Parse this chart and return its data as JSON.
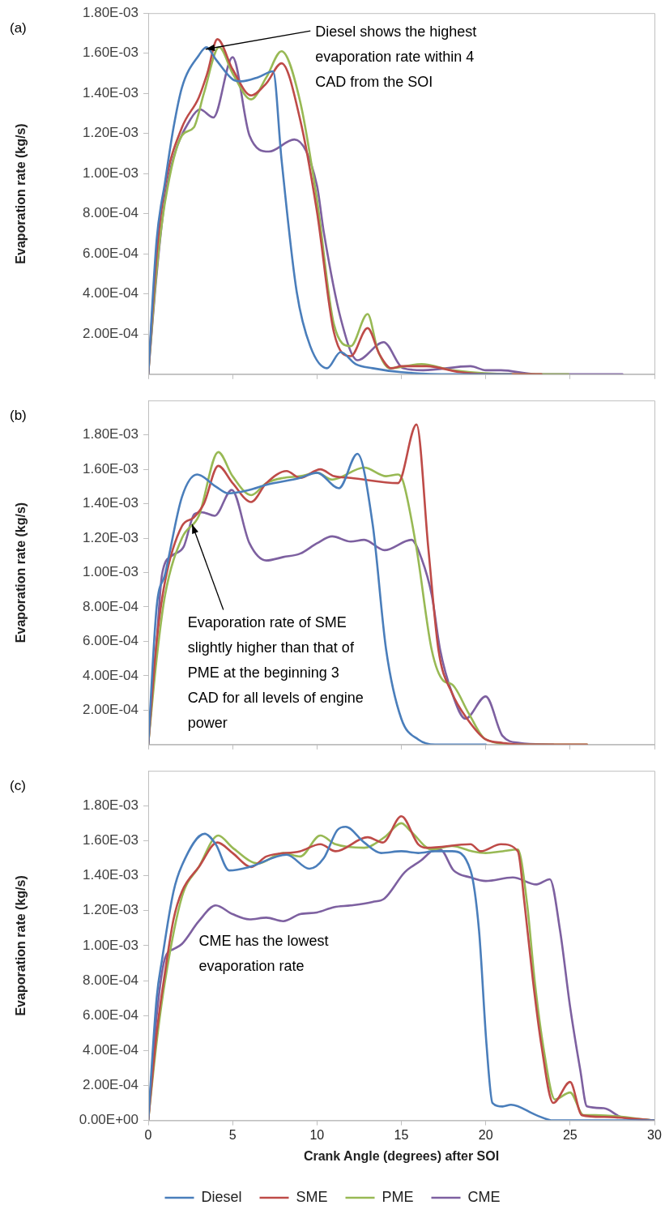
{
  "chart_data": [
    {
      "type": "line",
      "title": "(a)",
      "ylabel": "Evaporation rate (kg/s)",
      "xlim": [
        0,
        30
      ],
      "ylim": [
        0,
        0.0018
      ],
      "tick_labels": "y",
      "legend": false,
      "xticks": [
        {
          "value": 0,
          "label": null
        },
        {
          "value": 5,
          "label": null
        },
        {
          "value": 10,
          "label": null
        },
        {
          "value": 15,
          "label": null
        },
        {
          "value": 20,
          "label": null
        },
        {
          "value": 25,
          "label": null
        },
        {
          "value": 30,
          "label": null
        }
      ],
      "yticks": [
        {
          "value": 0.0002,
          "label": "2.00E-04"
        },
        {
          "value": 0.0004,
          "label": "4.00E-04"
        },
        {
          "value": 0.0006,
          "label": "6.00E-04"
        },
        {
          "value": 0.0008,
          "label": "8.00E-04"
        },
        {
          "value": 0.001,
          "label": "1.00E-03"
        },
        {
          "value": 0.0012,
          "label": "1.20E-03"
        },
        {
          "value": 0.0014,
          "label": "1.40E-03"
        },
        {
          "value": 0.0016,
          "label": "1.60E-03"
        },
        {
          "value": 0.0018,
          "label": "1.80E-03"
        }
      ],
      "annotations": [
        {
          "text": "Diesel shows the highest evaporation rate within 4 CAD from the SOI",
          "x": 3.4,
          "y": 0.00162
        }
      ],
      "series": [
        {
          "color": "#4a7ebb",
          "x": [
            0,
            0.5,
            1,
            1.5,
            2,
            3,
            3.45,
            4,
            5,
            5.5,
            6.5,
            7.4,
            7.9,
            8.8,
            9.6,
            10.6,
            11.4,
            12.3,
            13.3,
            15,
            18,
            21.5
          ],
          "values": [
            0,
            0.00067,
            0.00096,
            0.00123,
            0.00143,
            0.00159,
            0.00163,
            0.00157,
            0.00147,
            0.00146,
            0.00148,
            0.00151,
            0.00107,
            0.00041,
            0.00014,
            3e-05,
            0.00011,
            5e-05,
            3e-05,
            1e-05,
            0,
            0
          ]
        },
        {
          "color": "#be4b48",
          "x": [
            0,
            0.5,
            1,
            2,
            3,
            3.5,
            4.1,
            5,
            6.1,
            7,
            7.9,
            9,
            10,
            11,
            12,
            13,
            13.7,
            14.4,
            15,
            16.5,
            18.5,
            20,
            23.3
          ],
          "values": [
            0,
            0.0006,
            0.00094,
            0.00123,
            0.00138,
            0.0015,
            0.00167,
            0.00152,
            0.00139,
            0.00145,
            0.00155,
            0.00127,
            0.00081,
            0.00021,
            9e-05,
            0.00023,
            0.0001,
            3e-05,
            4e-05,
            4e-05,
            1e-05,
            0,
            0
          ]
        },
        {
          "color": "#98b954",
          "x": [
            0,
            0.5,
            1,
            2,
            2.7,
            3.3,
            4.2,
            5,
            6.1,
            7,
            7.9,
            9,
            10,
            11,
            12,
            13,
            13.6,
            14.3,
            16.2,
            18,
            22,
            24.9
          ],
          "values": [
            0,
            0.00052,
            0.00086,
            0.00119,
            0.00123,
            0.0014,
            0.00163,
            0.0015,
            0.00137,
            0.00148,
            0.00161,
            0.00136,
            0.00087,
            0.00025,
            0.00014,
            0.0003,
            0.00012,
            3e-05,
            5e-05,
            2e-05,
            0,
            0
          ]
        },
        {
          "color": "#7d60a0",
          "x": [
            0,
            0.5,
            1,
            1.5,
            2.5,
            3.07,
            3.86,
            5,
            6,
            7.15,
            8.66,
            10,
            10.4,
            11.4,
            12.4,
            13.95,
            15.1,
            16.3,
            19.1,
            20,
            20.9,
            23,
            28.1
          ],
          "values": [
            0,
            0.0005,
            0.00088,
            0.00108,
            0.00127,
            0.00132,
            0.00128,
            0.00158,
            0.00119,
            0.00111,
            0.00117,
            0.00094,
            0.00071,
            0.00028,
            7e-05,
            0.00016,
            3e-05,
            2e-05,
            4e-05,
            2e-05,
            2e-05,
            0,
            0
          ]
        }
      ]
    },
    {
      "type": "line",
      "title": "(b)",
      "ylabel": "Evaporation rate (kg/s)",
      "xlim": [
        0,
        30
      ],
      "ylim": [
        0,
        0.002
      ],
      "tick_labels": "y",
      "legend": false,
      "xticks": [
        {
          "value": 0,
          "label": null
        },
        {
          "value": 5,
          "label": null
        },
        {
          "value": 10,
          "label": null
        },
        {
          "value": 15,
          "label": null
        },
        {
          "value": 20,
          "label": null
        },
        {
          "value": 25,
          "label": null
        },
        {
          "value": 30,
          "label": null
        }
      ],
      "yticks": [
        {
          "value": 0.0002,
          "label": "2.00E-04"
        },
        {
          "value": 0.0004,
          "label": "4.00E-04"
        },
        {
          "value": 0.0006,
          "label": "6.00E-04"
        },
        {
          "value": 0.0008,
          "label": "8.00E-04"
        },
        {
          "value": 0.001,
          "label": "1.00E-03"
        },
        {
          "value": 0.0012,
          "label": "1.20E-03"
        },
        {
          "value": 0.0014,
          "label": "1.40E-03"
        },
        {
          "value": 0.0016,
          "label": "1.60E-03"
        },
        {
          "value": 0.0018,
          "label": "1.80E-03"
        }
      ],
      "annotations": [
        {
          "text": "Evaporation rate of SME slightly higher than that of PME at the beginning 3 CAD for all levels of engine power",
          "x": 2.6,
          "y": 0.00128
        }
      ],
      "series": [
        {
          "color": "#4a7ebb",
          "x": [
            0,
            0.5,
            1,
            2,
            2.9,
            4,
            4.75,
            6,
            7,
            9,
            10,
            11.3,
            12.4,
            13.3,
            14.1,
            15,
            16,
            17,
            20
          ],
          "values": [
            0,
            0.0008,
            0.00099,
            0.00144,
            0.00157,
            0.0015,
            0.00146,
            0.00148,
            0.00151,
            0.00155,
            0.00158,
            0.00149,
            0.00169,
            0.00128,
            0.00055,
            0.00015,
            3e-05,
            0,
            0
          ]
        },
        {
          "color": "#be4b48",
          "x": [
            0,
            0.5,
            1,
            2,
            2.7,
            3.3,
            4.15,
            5,
            6.1,
            7,
            8.2,
            9,
            10.2,
            11,
            12,
            14.8,
            15.9,
            16.6,
            17.2,
            18,
            18.9,
            20,
            21,
            22,
            26
          ],
          "values": [
            0,
            0.0006,
            0.00095,
            0.00127,
            0.00132,
            0.0014,
            0.00162,
            0.00152,
            0.00141,
            0.00152,
            0.00159,
            0.00155,
            0.0016,
            0.00156,
            0.00155,
            0.00152,
            0.00186,
            0.00114,
            0.00055,
            0.0003,
            0.00015,
            3e-05,
            1e-05,
            0,
            0
          ]
        },
        {
          "color": "#98b954",
          "x": [
            0,
            0.5,
            1,
            2,
            3,
            4.15,
            5,
            6.1,
            7,
            8,
            9,
            10,
            10.9,
            12.8,
            14.1,
            14.8,
            15.1,
            15.9,
            16.8,
            17.5,
            18,
            19,
            20,
            22,
            26
          ],
          "values": [
            0,
            0.0005,
            0.00087,
            0.0012,
            0.00133,
            0.0017,
            0.00156,
            0.00145,
            0.00152,
            0.00155,
            0.00156,
            0.00158,
            0.00154,
            0.00161,
            0.00156,
            0.00157,
            0.00153,
            0.00114,
            0.00055,
            0.00037,
            0.00035,
            0.00018,
            3e-05,
            0,
            0
          ]
        },
        {
          "color": "#7d60a0",
          "x": [
            0,
            0.5,
            0.82,
            1.44,
            2.1,
            2.74,
            3.2,
            3.94,
            4.95,
            6,
            7,
            8,
            9,
            10,
            10.9,
            12,
            12.8,
            14,
            15.6,
            16.2,
            16.8,
            17.3,
            18,
            18.8,
            20,
            21,
            22,
            24
          ],
          "values": [
            0,
            0.0006,
            0.00099,
            0.0011,
            0.00115,
            0.00134,
            0.00135,
            0.00133,
            0.00148,
            0.00117,
            0.00107,
            0.00109,
            0.00111,
            0.00117,
            0.00121,
            0.00118,
            0.00119,
            0.00113,
            0.00119,
            0.00108,
            0.00087,
            0.00055,
            0.0003,
            0.00015,
            0.00028,
            5e-05,
            1e-05,
            0
          ]
        }
      ]
    },
    {
      "type": "line",
      "title": "(c)",
      "xlabel": "Crank Angle (degrees) after SOI",
      "ylabel": "Evaporation rate (kg/s)",
      "xlim": [
        0,
        30
      ],
      "ylim": [
        0,
        0.002
      ],
      "legend": "bottom",
      "xticks": [
        0,
        5,
        10,
        15,
        20,
        25,
        30
      ],
      "yticks": [
        {
          "value": 0,
          "label": "0.00E+00"
        },
        {
          "value": 0.0002,
          "label": "2.00E-04"
        },
        {
          "value": 0.0004,
          "label": "4.00E-04"
        },
        {
          "value": 0.0006,
          "label": "6.00E-04"
        },
        {
          "value": 0.0008,
          "label": "8.00E-04"
        },
        {
          "value": 0.001,
          "label": "1.00E-03"
        },
        {
          "value": 0.0012,
          "label": "1.20E-03"
        },
        {
          "value": 0.0014,
          "label": "1.40E-03"
        },
        {
          "value": 0.0016,
          "label": "1.60E-03"
        },
        {
          "value": 0.0018,
          "label": "1.80E-03"
        }
      ],
      "annotations": [
        "CME has the lowest evaporation rate"
      ],
      "series": [
        {
          "name": "Diesel",
          "color": "#4a7ebb",
          "x": [
            0,
            0.5,
            0.82,
            1.5,
            2,
            3.35,
            4,
            4.8,
            6,
            8.2,
            9.55,
            10.4,
            11.2,
            11.7,
            12.8,
            13.8,
            15,
            16,
            17,
            18,
            19.1,
            19.6,
            20.05,
            20.4,
            21,
            21.5,
            23,
            24,
            30
          ],
          "values": [
            0,
            0.0007,
            0.00092,
            0.00131,
            0.00146,
            0.00164,
            0.00158,
            0.00143,
            0.00145,
            0.00152,
            0.00144,
            0.0015,
            0.00166,
            0.00168,
            0.00159,
            0.00153,
            0.00154,
            0.00153,
            0.00154,
            0.00154,
            0.00143,
            0.00109,
            0.00043,
            0.0001,
            8e-05,
            9e-05,
            3e-05,
            0,
            0
          ]
        },
        {
          "name": "SME",
          "color": "#be4b48",
          "x": [
            0,
            0.5,
            1,
            1.5,
            2,
            3,
            4.1,
            5,
            6.1,
            7,
            9,
            10.2,
            11.1,
            13,
            13.9,
            15,
            16,
            16.5,
            19.1,
            19.7,
            20.9,
            21.9,
            22.3,
            22.8,
            23.3,
            24,
            25,
            25.7,
            27,
            30
          ],
          "values": [
            0,
            0.0005,
            0.00085,
            0.00115,
            0.00131,
            0.00145,
            0.00159,
            0.00153,
            0.00145,
            0.00151,
            0.00154,
            0.00158,
            0.00154,
            0.00162,
            0.00159,
            0.00174,
            0.00158,
            0.00156,
            0.00158,
            0.00154,
            0.00158,
            0.00154,
            0.00124,
            0.0008,
            0.00043,
            0.0001,
            0.00022,
            3e-05,
            2e-05,
            0
          ]
        },
        {
          "name": "PME",
          "color": "#98b954",
          "x": [
            0,
            0.5,
            1,
            2,
            3,
            4.15,
            5,
            6.5,
            8,
            9,
            10.2,
            11.1,
            12.8,
            14,
            15,
            15.6,
            16.8,
            18,
            19.2,
            20,
            21,
            21.9,
            22.45,
            22.9,
            23.4,
            24.1,
            25,
            25.8,
            26.5,
            30
          ],
          "values": [
            0,
            0.00045,
            0.0008,
            0.00128,
            0.00145,
            0.00163,
            0.00156,
            0.00147,
            0.00153,
            0.00151,
            0.00163,
            0.00158,
            0.00156,
            0.00162,
            0.0017,
            0.00165,
            0.00155,
            0.00157,
            0.00154,
            0.00153,
            0.00154,
            0.00155,
            0.00124,
            0.0008,
            0.00043,
            0.00012,
            0.00016,
            3e-05,
            3e-05,
            0
          ]
        },
        {
          "name": "CME",
          "color": "#7d60a0",
          "x": [
            0,
            0.5,
            1,
            1.5,
            2,
            3,
            4,
            5,
            6,
            7,
            8,
            9,
            10,
            11,
            12,
            13.3,
            14,
            15.2,
            16.2,
            16.8,
            17.3,
            18.1,
            19.1,
            20,
            21.6,
            23,
            23.8,
            24.4,
            25,
            25.6,
            26,
            27,
            28,
            30
          ],
          "values": [
            0,
            0.0006,
            0.00093,
            0.00098,
            0.00101,
            0.00114,
            0.00123,
            0.00118,
            0.00115,
            0.00116,
            0.00114,
            0.00118,
            0.00119,
            0.00122,
            0.00123,
            0.00125,
            0.00127,
            0.00142,
            0.00149,
            0.00154,
            0.00155,
            0.00143,
            0.00139,
            0.00137,
            0.00139,
            0.00135,
            0.00138,
            0.00109,
            0.00065,
            0.00029,
            8e-05,
            7e-05,
            2e-05,
            0
          ]
        }
      ]
    }
  ]
}
